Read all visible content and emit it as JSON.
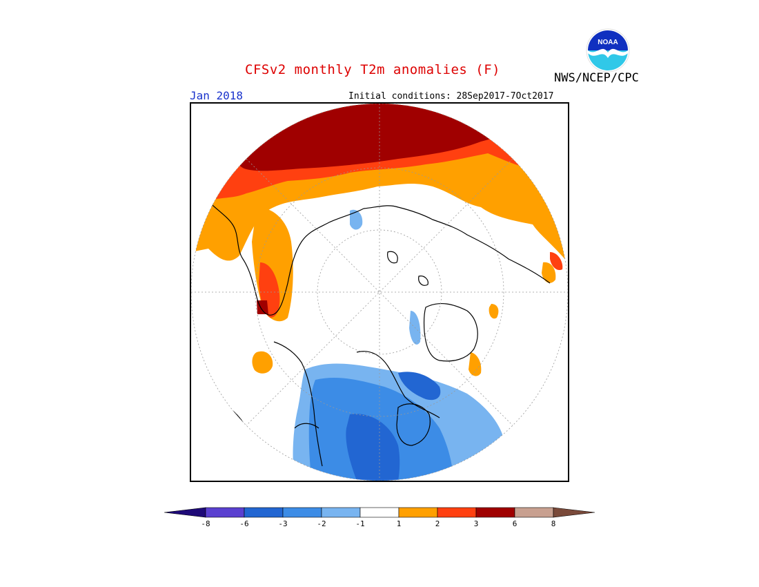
{
  "header": {
    "title": "CFSv2 monthly T2m anomalies (F)",
    "agency": "NWS/NCEP/CPC",
    "month": "Jan 2018",
    "initial_conditions": "Initial conditions: 28Sep2017-7Oct2017",
    "logo_text": "NOAA"
  },
  "legend": {
    "tick_labels": [
      "-8",
      "-6",
      "-3",
      "-2",
      "-1",
      "1",
      "2",
      "3",
      "6",
      "8"
    ],
    "colors": [
      "#1e0a78",
      "#5a40d0",
      "#2266d2",
      "#3c8ce6",
      "#78b4f0",
      "#ffffff",
      "#ffa000",
      "#ff4010",
      "#a00000",
      "#c8a090",
      "#7a4a3a"
    ]
  },
  "colors": {
    "title": "#dd0000",
    "month": "#1a33cc",
    "cold_strong": "#2266d2",
    "cold_moderate": "#3c8ce6",
    "cold_weak": "#78b4f0",
    "warm_weak": "#ffa000",
    "warm_moderate": "#ff4010",
    "warm_strong": "#a00000"
  }
}
